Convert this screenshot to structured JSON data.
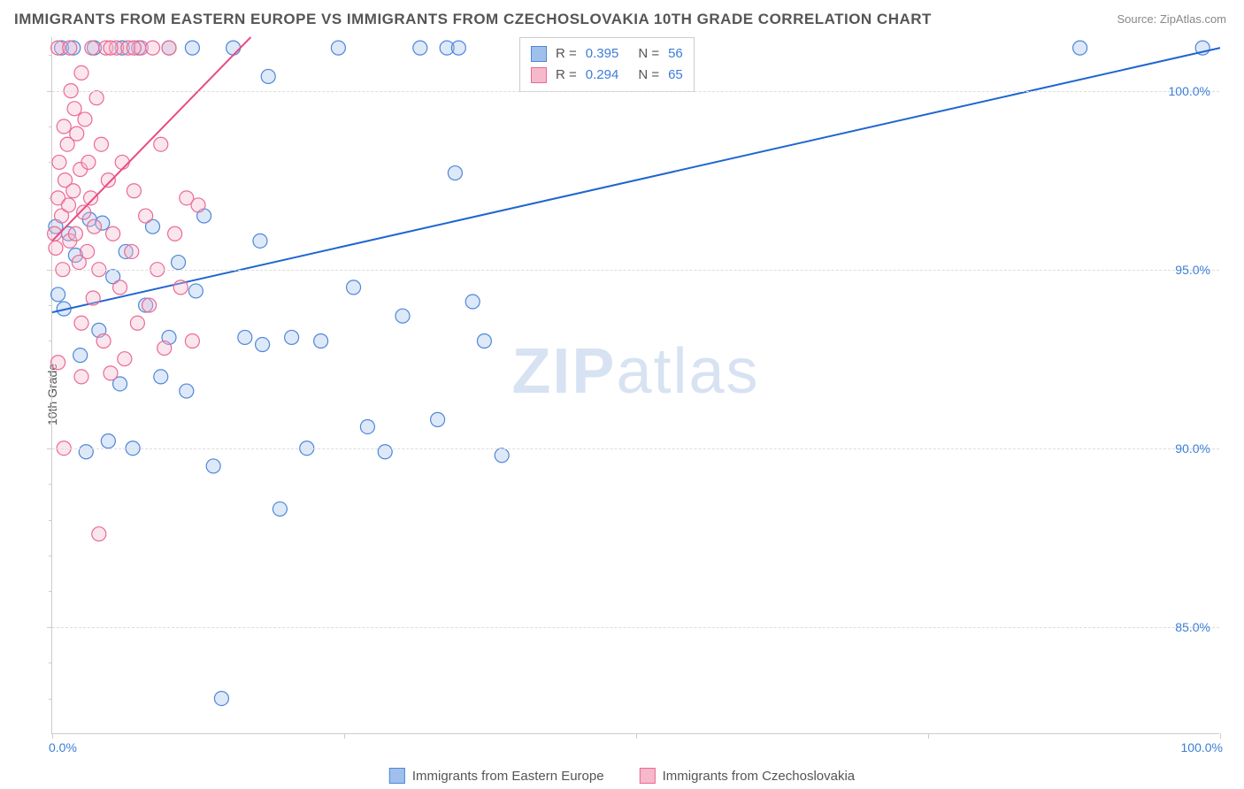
{
  "title": "IMMIGRANTS FROM EASTERN EUROPE VS IMMIGRANTS FROM CZECHOSLOVAKIA 10TH GRADE CORRELATION CHART",
  "source": "Source: ZipAtlas.com",
  "watermark_a": "ZIP",
  "watermark_b": "atlas",
  "ylabel": "10th Grade",
  "chart": {
    "type": "scatter",
    "xlim": [
      0,
      100
    ],
    "ylim": [
      82,
      101.5
    ],
    "x_start_label": "0.0%",
    "x_end_label": "100.0%",
    "y_ticks": [
      85.0,
      90.0,
      95.0,
      100.0
    ],
    "y_tick_labels": [
      "85.0%",
      "90.0%",
      "95.0%",
      "100.0%"
    ],
    "x_tick_positions": [
      0,
      25,
      50,
      75,
      100
    ],
    "y_minor_ticks": [
      83,
      84,
      86,
      87,
      88,
      89,
      91,
      92,
      93,
      94,
      96,
      97,
      98,
      99,
      101
    ],
    "grid_color": "#dddddd",
    "axis_color": "#cccccc",
    "background_color": "#ffffff",
    "marker_radius": 8,
    "marker_fill_opacity": 0.35,
    "marker_stroke_width": 1.2,
    "line_width": 2,
    "legend_stats": {
      "left_pct": 40,
      "top_pct": 0,
      "rows": [
        {
          "swatch_fill": "#9fc0ec",
          "swatch_border": "#4f86d9",
          "r_label": "R =",
          "r_value": "0.395",
          "n_label": "N =",
          "n_value": "56"
        },
        {
          "swatch_fill": "#f6b8cb",
          "swatch_border": "#ea6a94",
          "r_label": "R =",
          "r_value": "0.294",
          "n_label": "N =",
          "n_value": "65"
        }
      ]
    },
    "series": [
      {
        "name": "Immigrants from Eastern Europe",
        "color_fill": "#9fc0ec",
        "color_stroke": "#4f86d9",
        "trend_color": "#1f66d0",
        "trend": {
          "x1": 0,
          "y1": 93.8,
          "x2": 100,
          "y2": 101.2
        },
        "points": [
          [
            0.3,
            96.2
          ],
          [
            0.5,
            94.3
          ],
          [
            0.8,
            101.2
          ],
          [
            1.0,
            93.9
          ],
          [
            1.4,
            96.0
          ],
          [
            1.8,
            101.2
          ],
          [
            2.0,
            95.4
          ],
          [
            2.4,
            92.6
          ],
          [
            2.9,
            89.9
          ],
          [
            3.2,
            96.4
          ],
          [
            3.6,
            101.2
          ],
          [
            4.0,
            93.3
          ],
          [
            4.3,
            96.3
          ],
          [
            4.8,
            90.2
          ],
          [
            5.2,
            94.8
          ],
          [
            5.8,
            91.8
          ],
          [
            6.3,
            95.5
          ],
          [
            6.9,
            90.0
          ],
          [
            7.4,
            101.2
          ],
          [
            8.0,
            94.0
          ],
          [
            8.6,
            96.2
          ],
          [
            9.3,
            92.0
          ],
          [
            10.0,
            93.1
          ],
          [
            10.8,
            95.2
          ],
          [
            11.5,
            91.6
          ],
          [
            12.3,
            94.4
          ],
          [
            13.0,
            96.5
          ],
          [
            13.8,
            89.5
          ],
          [
            14.5,
            83.0
          ],
          [
            15.5,
            101.2
          ],
          [
            16.5,
            93.1
          ],
          [
            17.8,
            95.8
          ],
          [
            18.5,
            100.4
          ],
          [
            19.5,
            88.3
          ],
          [
            20.5,
            93.1
          ],
          [
            21.8,
            90.0
          ],
          [
            23.0,
            93.0
          ],
          [
            24.5,
            101.2
          ],
          [
            25.8,
            94.5
          ],
          [
            27.0,
            90.6
          ],
          [
            28.5,
            89.9
          ],
          [
            30.0,
            93.7
          ],
          [
            31.5,
            101.2
          ],
          [
            33.0,
            90.8
          ],
          [
            34.5,
            97.7
          ],
          [
            36.0,
            94.1
          ],
          [
            33.8,
            101.2
          ],
          [
            34.8,
            101.2
          ],
          [
            37.0,
            93.0
          ],
          [
            38.5,
            89.8
          ],
          [
            88.0,
            101.2
          ],
          [
            98.5,
            101.2
          ],
          [
            6.0,
            101.2
          ],
          [
            18.0,
            92.9
          ],
          [
            12.0,
            101.2
          ],
          [
            10.0,
            101.2
          ]
        ]
      },
      {
        "name": "Immigrants from Czechoslovakia",
        "color_fill": "#f6b8cb",
        "color_stroke": "#ea6a94",
        "trend_color": "#e84b85",
        "trend": {
          "x1": 0,
          "y1": 95.8,
          "x2": 17,
          "y2": 101.5
        },
        "points": [
          [
            0.2,
            96.0
          ],
          [
            0.3,
            95.6
          ],
          [
            0.5,
            97.0
          ],
          [
            0.6,
            98.0
          ],
          [
            0.8,
            96.5
          ],
          [
            0.9,
            95.0
          ],
          [
            1.0,
            99.0
          ],
          [
            1.1,
            97.5
          ],
          [
            1.3,
            98.5
          ],
          [
            1.4,
            96.8
          ],
          [
            1.5,
            95.8
          ],
          [
            1.6,
            100.0
          ],
          [
            1.8,
            97.2
          ],
          [
            1.9,
            99.5
          ],
          [
            2.0,
            96.0
          ],
          [
            2.1,
            98.8
          ],
          [
            2.3,
            95.2
          ],
          [
            2.4,
            97.8
          ],
          [
            2.5,
            100.5
          ],
          [
            2.7,
            96.6
          ],
          [
            2.8,
            99.2
          ],
          [
            3.0,
            95.5
          ],
          [
            3.1,
            98.0
          ],
          [
            3.3,
            97.0
          ],
          [
            3.4,
            101.2
          ],
          [
            3.6,
            96.2
          ],
          [
            3.8,
            99.8
          ],
          [
            4.0,
            95.0
          ],
          [
            4.2,
            98.5
          ],
          [
            4.4,
            93.0
          ],
          [
            4.6,
            101.2
          ],
          [
            4.8,
            97.5
          ],
          [
            5.0,
            92.1
          ],
          [
            5.2,
            96.0
          ],
          [
            5.5,
            101.2
          ],
          [
            5.8,
            94.5
          ],
          [
            6.0,
            98.0
          ],
          [
            6.2,
            92.5
          ],
          [
            6.5,
            101.2
          ],
          [
            6.8,
            95.5
          ],
          [
            7.0,
            97.2
          ],
          [
            7.3,
            93.5
          ],
          [
            7.6,
            101.2
          ],
          [
            8.0,
            96.5
          ],
          [
            8.3,
            94.0
          ],
          [
            8.6,
            101.2
          ],
          [
            9.0,
            95.0
          ],
          [
            9.3,
            98.5
          ],
          [
            9.6,
            92.8
          ],
          [
            10.0,
            101.2
          ],
          [
            10.5,
            96.0
          ],
          [
            11.0,
            94.5
          ],
          [
            11.5,
            97.0
          ],
          [
            12.0,
            93.0
          ],
          [
            12.5,
            96.8
          ],
          [
            0.5,
            92.4
          ],
          [
            1.0,
            90.0
          ],
          [
            2.5,
            92.0
          ],
          [
            4.0,
            87.6
          ],
          [
            0.5,
            101.2
          ],
          [
            1.5,
            101.2
          ],
          [
            2.5,
            93.5
          ],
          [
            3.5,
            94.2
          ],
          [
            5.0,
            101.2
          ],
          [
            7.0,
            101.2
          ]
        ]
      }
    ]
  },
  "bottom_legend": {
    "items": [
      {
        "label": "Immigrants from Eastern Europe",
        "fill": "#9fc0ec",
        "border": "#4f86d9"
      },
      {
        "label": "Immigrants from Czechoslovakia",
        "fill": "#f6b8cb",
        "border": "#ea6a94"
      }
    ]
  }
}
